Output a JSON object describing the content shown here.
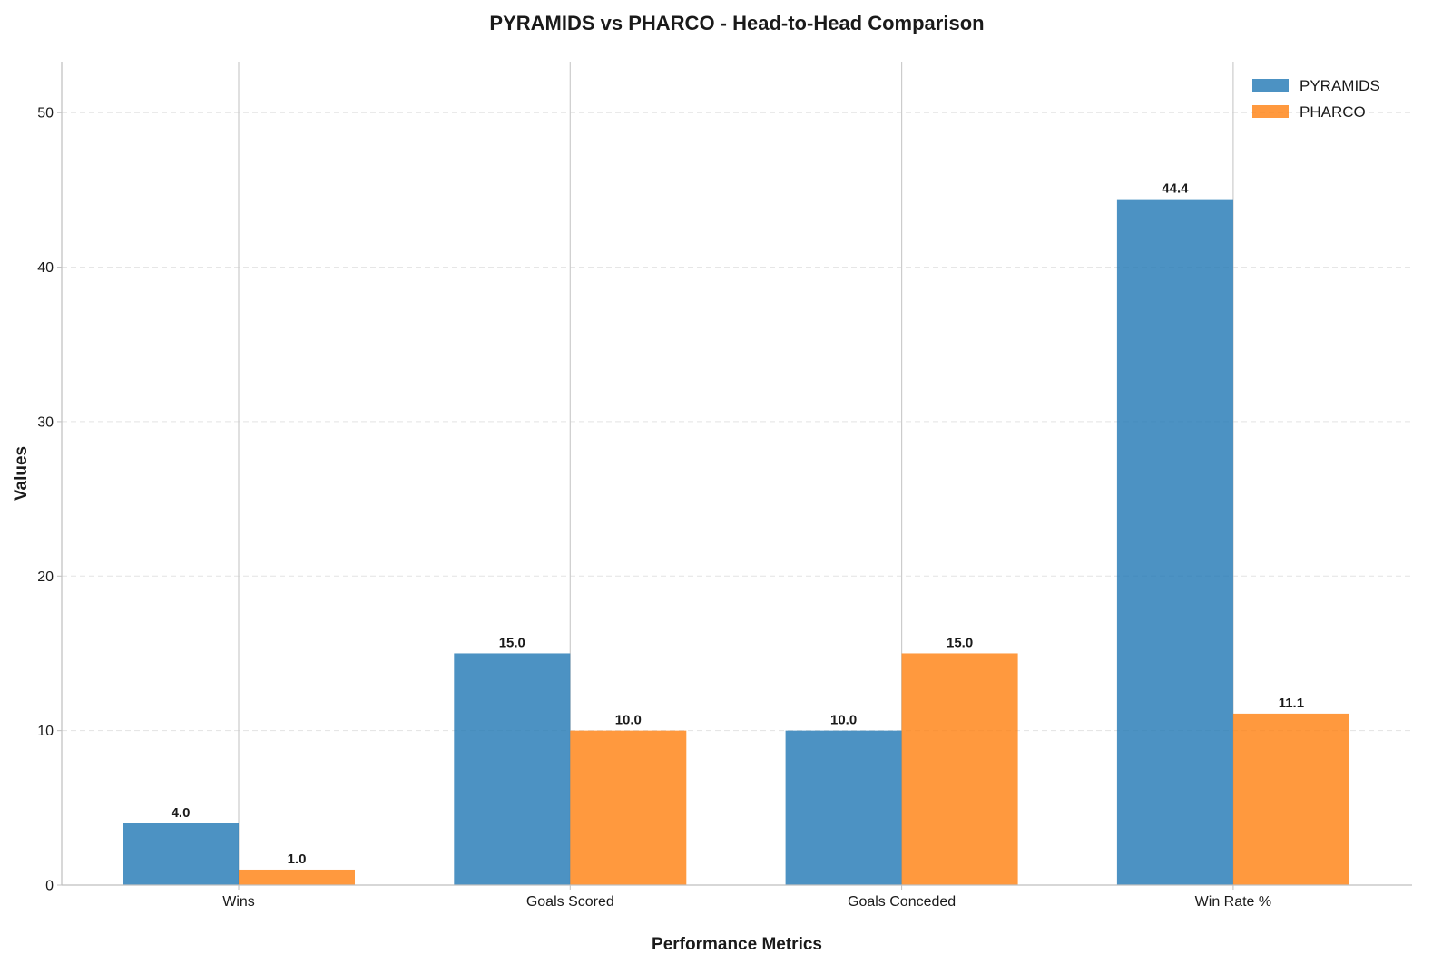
{
  "chart_data": {
    "type": "bar",
    "title": "PYRAMIDS vs PHARCO - Head-to-Head Comparison",
    "xlabel": "Performance Metrics",
    "ylabel": "Values",
    "categories": [
      "Wins",
      "Goals Scored",
      "Goals Conceded",
      "Win Rate %"
    ],
    "series": [
      {
        "name": "PYRAMIDS",
        "color": "#1f77b4",
        "values": [
          4.0,
          15.0,
          10.0,
          44.4
        ],
        "value_labels": [
          "4.0",
          "15.0",
          "10.0",
          "44.4"
        ]
      },
      {
        "name": "PHARCO",
        "color": "#ff7f0e",
        "values": [
          1.0,
          10.0,
          15.0,
          11.1
        ],
        "value_labels": [
          "1.0",
          "10.0",
          "15.0",
          "11.1"
        ]
      }
    ],
    "ylim": [
      0,
      53.3
    ],
    "yticks": [
      0,
      10,
      20,
      30,
      40,
      50
    ],
    "ytick_labels": [
      "0",
      "10",
      "20",
      "30",
      "40",
      "50"
    ],
    "grid": true,
    "legend_position": "top-right"
  }
}
